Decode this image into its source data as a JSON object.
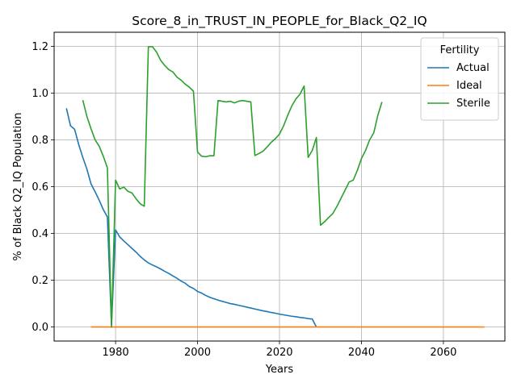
{
  "chart_data": {
    "type": "line",
    "title": "Score_8_in_TRUST_IN_PEOPLE_for_Black_Q2_IQ",
    "xlabel": "Years",
    "ylabel": "% of Black Q2_IQ Population",
    "xlim": [
      1965,
      2075
    ],
    "ylim": [
      -0.06,
      1.26
    ],
    "xticks": [
      1980,
      2000,
      2020,
      2040,
      2060
    ],
    "yticks": [
      0.0,
      0.2,
      0.4,
      0.6,
      0.8,
      1.0,
      1.2
    ],
    "xtick_labels": [
      "1980",
      "2000",
      "2020",
      "2040",
      "2060"
    ],
    "ytick_labels": [
      "0.0",
      "0.2",
      "0.4",
      "0.6",
      "0.8",
      "1.0",
      "1.2"
    ],
    "grid": true,
    "legend": {
      "title": "Fertility",
      "position": "upper-right"
    },
    "series": [
      {
        "name": "Actual",
        "color": "#1f77b4",
        "x": [
          1968,
          1969,
          1970,
          1971,
          1972,
          1973,
          1974,
          1975,
          1976,
          1977,
          1978,
          1979,
          1980,
          1981,
          1982,
          1983,
          1984,
          1985,
          1986,
          1987,
          1988,
          1989,
          1990,
          1991,
          1992,
          1993,
          1994,
          1995,
          1996,
          1997,
          1998,
          1999,
          2000,
          2001,
          2002,
          2003,
          2004,
          2005,
          2006,
          2007,
          2008,
          2009,
          2010,
          2011,
          2012,
          2013,
          2014,
          2015,
          2016,
          2017,
          2018,
          2019,
          2020,
          2021,
          2022,
          2023,
          2024,
          2025,
          2026,
          2027,
          2028,
          2029
        ],
        "values": [
          0.935,
          0.86,
          0.845,
          0.78,
          0.725,
          0.675,
          0.612,
          0.578,
          0.542,
          0.502,
          0.47,
          0.008,
          0.415,
          0.385,
          0.368,
          0.352,
          0.336,
          0.32,
          0.302,
          0.287,
          0.274,
          0.265,
          0.257,
          0.248,
          0.238,
          0.229,
          0.218,
          0.208,
          0.196,
          0.187,
          0.173,
          0.165,
          0.152,
          0.145,
          0.135,
          0.127,
          0.121,
          0.115,
          0.11,
          0.105,
          0.1,
          0.097,
          0.093,
          0.089,
          0.085,
          0.081,
          0.077,
          0.073,
          0.069,
          0.066,
          0.062,
          0.059,
          0.055,
          0.052,
          0.049,
          0.046,
          0.044,
          0.041,
          0.039,
          0.036,
          0.034,
          0.0
        ]
      },
      {
        "name": "Ideal",
        "color": "#ff7f0e",
        "x": [
          1974,
          2070
        ],
        "values": [
          0.0,
          0.0
        ]
      },
      {
        "name": "Sterile",
        "color": "#2ca02c",
        "x": [
          1972,
          1973,
          1974,
          1975,
          1976,
          1977,
          1978,
          1979,
          1980,
          1981,
          1982,
          1983,
          1984,
          1985,
          1986,
          1987,
          1988,
          1989,
          1990,
          1991,
          1992,
          1993,
          1994,
          1995,
          1996,
          1997,
          1998,
          1999,
          2000,
          2001,
          2002,
          2003,
          2004,
          2005,
          2006,
          2007,
          2008,
          2009,
          2010,
          2011,
          2012,
          2013,
          2014,
          2015,
          2016,
          2017,
          2018,
          2019,
          2020,
          2021,
          2022,
          2023,
          2024,
          2025,
          2026,
          2027,
          2028,
          2029,
          2030,
          2031,
          2032,
          2033,
          2034,
          2035,
          2036,
          2037,
          2038,
          2039,
          2040,
          2041,
          2042,
          2043,
          2044,
          2045
        ],
        "values": [
          0.97,
          0.9,
          0.848,
          0.8,
          0.773,
          0.73,
          0.68,
          0.0,
          0.628,
          0.59,
          0.598,
          0.58,
          0.573,
          0.548,
          0.527,
          0.516,
          1.198,
          1.198,
          1.175,
          1.14,
          1.118,
          1.1,
          1.09,
          1.068,
          1.055,
          1.038,
          1.025,
          1.008,
          0.748,
          0.73,
          0.728,
          0.732,
          0.732,
          0.968,
          0.965,
          0.962,
          0.965,
          0.958,
          0.965,
          0.968,
          0.965,
          0.962,
          0.733,
          0.742,
          0.752,
          0.77,
          0.79,
          0.805,
          0.825,
          0.86,
          0.905,
          0.945,
          0.975,
          0.995,
          1.03,
          0.725,
          0.755,
          0.81,
          0.435,
          0.45,
          0.468,
          0.485,
          0.515,
          0.55,
          0.585,
          0.62,
          0.628,
          0.67,
          0.72,
          0.755,
          0.8,
          0.83,
          0.905,
          0.962
        ]
      }
    ]
  }
}
